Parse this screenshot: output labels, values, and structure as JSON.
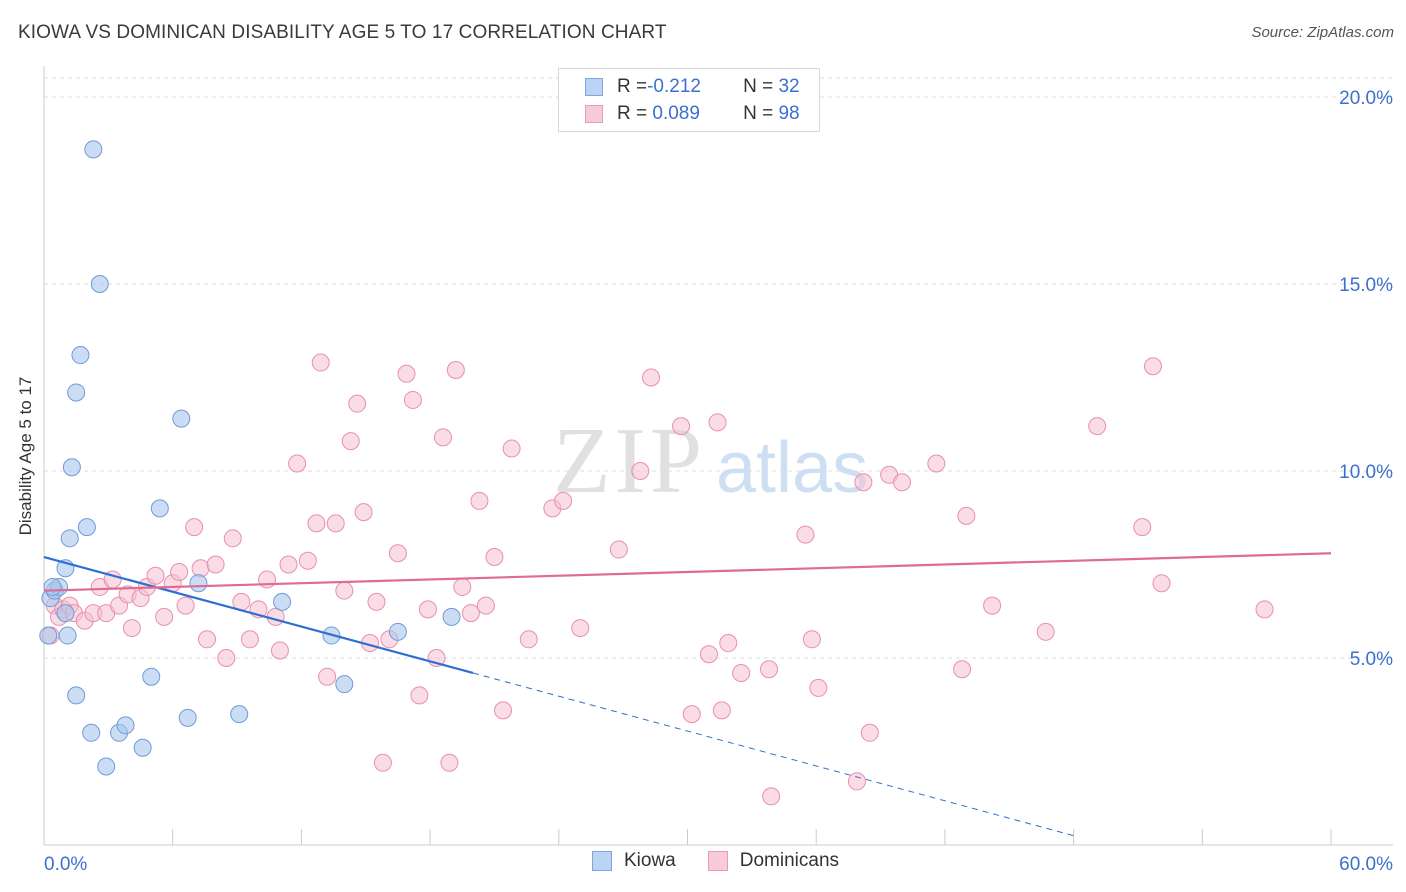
{
  "title": "KIOWA VS DOMINICAN DISABILITY AGE 5 TO 17 CORRELATION CHART",
  "source": "Source: ZipAtlas.com",
  "watermark": {
    "zip": "ZIP",
    "atlas": "atlas"
  },
  "legend": {
    "rows": [
      {
        "r_label": "R = ",
        "r_value": "-0.212",
        "n_label": "N = ",
        "n_value": "32"
      },
      {
        "r_label": "R = ",
        "r_value": " 0.089",
        "n_label": "N = ",
        "n_value": "98"
      }
    ]
  },
  "bottom_legend": {
    "kiowa": "Kiowa",
    "dominicans": "Dominicans"
  },
  "colors": {
    "kiowa_fill": "#a9c6ee",
    "kiowa_stroke": "#6f9bd8",
    "kiowa_line": "#2e6fd0",
    "dom_fill": "#f6bfd0",
    "dom_stroke": "#e98fad",
    "dom_line": "#e06b94",
    "tick_label": "#3d6fce",
    "grid": "#dddddd"
  },
  "chart_data": {
    "type": "scatter",
    "title": "KIOWA VS DOMINICAN DISABILITY AGE 5 TO 17 CORRELATION CHART",
    "xlabel": "",
    "ylabel": "Disability Age 5 to 17",
    "xlim": [
      0,
      60
    ],
    "ylim": [
      0,
      20.5
    ],
    "x_tick_labels": [
      "0.0%",
      "60.0%"
    ],
    "y_ticks": [
      5,
      10,
      15,
      20
    ],
    "y_tick_labels": [
      "5.0%",
      "10.0%",
      "15.0%",
      "20.0%"
    ],
    "grid": true,
    "legend_position": "top-center",
    "series": [
      {
        "name": "Kiowa",
        "R": -0.212,
        "N": 32,
        "points": [
          [
            0.2,
            5.6
          ],
          [
            0.3,
            6.6
          ],
          [
            0.5,
            6.8
          ],
          [
            0.7,
            6.9
          ],
          [
            1.0,
            6.2
          ],
          [
            1.0,
            7.4
          ],
          [
            1.1,
            5.6
          ],
          [
            1.2,
            8.2
          ],
          [
            1.3,
            10.1
          ],
          [
            1.5,
            4.0
          ],
          [
            1.5,
            12.1
          ],
          [
            1.7,
            13.1
          ],
          [
            2.0,
            8.5
          ],
          [
            2.2,
            3.0
          ],
          [
            2.3,
            18.6
          ],
          [
            2.6,
            15.0
          ],
          [
            2.9,
            2.1
          ],
          [
            3.5,
            3.0
          ],
          [
            3.8,
            3.2
          ],
          [
            4.6,
            2.6
          ],
          [
            5.0,
            4.5
          ],
          [
            5.4,
            9.0
          ],
          [
            6.4,
            11.4
          ],
          [
            6.7,
            3.4
          ],
          [
            7.2,
            7.0
          ],
          [
            9.1,
            3.5
          ],
          [
            11.1,
            6.5
          ],
          [
            13.4,
            5.6
          ],
          [
            14.0,
            4.3
          ],
          [
            16.5,
            5.7
          ],
          [
            19.0,
            6.1
          ],
          [
            0.4,
            6.9
          ]
        ],
        "trend": {
          "x0": 0,
          "y0": 7.7,
          "x1": 20,
          "y1": 4.6,
          "dash_x1": 48,
          "dash_y1": 0.25
        }
      },
      {
        "name": "Dominicans",
        "R": 0.089,
        "N": 98,
        "points": [
          [
            0.3,
            5.6
          ],
          [
            0.5,
            6.4
          ],
          [
            0.7,
            6.1
          ],
          [
            0.9,
            6.3
          ],
          [
            1.2,
            6.4
          ],
          [
            1.4,
            6.2
          ],
          [
            1.9,
            6.0
          ],
          [
            2.3,
            6.2
          ],
          [
            2.6,
            6.9
          ],
          [
            2.9,
            6.2
          ],
          [
            3.2,
            7.1
          ],
          [
            3.5,
            6.4
          ],
          [
            3.9,
            6.7
          ],
          [
            4.1,
            5.8
          ],
          [
            4.5,
            6.6
          ],
          [
            4.8,
            6.9
          ],
          [
            5.2,
            7.2
          ],
          [
            5.6,
            6.1
          ],
          [
            6.0,
            7.0
          ],
          [
            6.3,
            7.3
          ],
          [
            6.6,
            6.4
          ],
          [
            7.0,
            8.5
          ],
          [
            7.3,
            7.4
          ],
          [
            7.6,
            5.5
          ],
          [
            8.0,
            7.5
          ],
          [
            8.5,
            5.0
          ],
          [
            8.8,
            8.2
          ],
          [
            9.2,
            6.5
          ],
          [
            9.6,
            5.5
          ],
          [
            10.0,
            6.3
          ],
          [
            10.4,
            7.1
          ],
          [
            10.8,
            6.1
          ],
          [
            11.0,
            5.2
          ],
          [
            11.4,
            7.5
          ],
          [
            11.8,
            10.2
          ],
          [
            12.3,
            7.6
          ],
          [
            12.7,
            8.6
          ],
          [
            12.9,
            12.9
          ],
          [
            13.2,
            4.5
          ],
          [
            13.6,
            8.6
          ],
          [
            14.0,
            6.8
          ],
          [
            14.3,
            10.8
          ],
          [
            14.6,
            11.8
          ],
          [
            14.9,
            8.9
          ],
          [
            15.2,
            5.4
          ],
          [
            15.5,
            6.5
          ],
          [
            15.8,
            2.2
          ],
          [
            16.1,
            5.5
          ],
          [
            16.5,
            7.8
          ],
          [
            16.9,
            12.6
          ],
          [
            17.2,
            11.9
          ],
          [
            17.5,
            4.0
          ],
          [
            17.9,
            6.3
          ],
          [
            18.3,
            5.0
          ],
          [
            18.6,
            10.9
          ],
          [
            18.9,
            2.2
          ],
          [
            19.2,
            12.7
          ],
          [
            19.5,
            6.9
          ],
          [
            19.9,
            6.2
          ],
          [
            20.3,
            9.2
          ],
          [
            20.6,
            6.4
          ],
          [
            21.0,
            7.7
          ],
          [
            21.4,
            3.6
          ],
          [
            21.8,
            10.6
          ],
          [
            22.6,
            5.5
          ],
          [
            23.7,
            9.0
          ],
          [
            24.2,
            9.2
          ],
          [
            25.0,
            5.8
          ],
          [
            26.8,
            7.9
          ],
          [
            27.8,
            10.0
          ],
          [
            28.3,
            12.5
          ],
          [
            29.7,
            11.2
          ],
          [
            30.2,
            3.5
          ],
          [
            31.0,
            5.1
          ],
          [
            31.4,
            11.3
          ],
          [
            31.6,
            3.6
          ],
          [
            31.9,
            5.4
          ],
          [
            32.5,
            4.6
          ],
          [
            33.8,
            4.7
          ],
          [
            33.9,
            1.3
          ],
          [
            35.5,
            8.3
          ],
          [
            35.8,
            5.5
          ],
          [
            36.1,
            4.2
          ],
          [
            37.9,
            1.7
          ],
          [
            38.2,
            9.7
          ],
          [
            38.5,
            3.0
          ],
          [
            39.4,
            9.9
          ],
          [
            40.0,
            9.7
          ],
          [
            41.6,
            10.2
          ],
          [
            42.8,
            4.7
          ],
          [
            43.0,
            8.8
          ],
          [
            44.2,
            6.4
          ],
          [
            46.7,
            5.7
          ],
          [
            49.1,
            11.2
          ],
          [
            51.2,
            8.5
          ],
          [
            51.7,
            12.8
          ],
          [
            52.1,
            7.0
          ],
          [
            56.9,
            6.3
          ]
        ],
        "trend": {
          "x0": 0,
          "y0": 6.8,
          "x1": 60,
          "y1": 7.8
        }
      }
    ]
  }
}
